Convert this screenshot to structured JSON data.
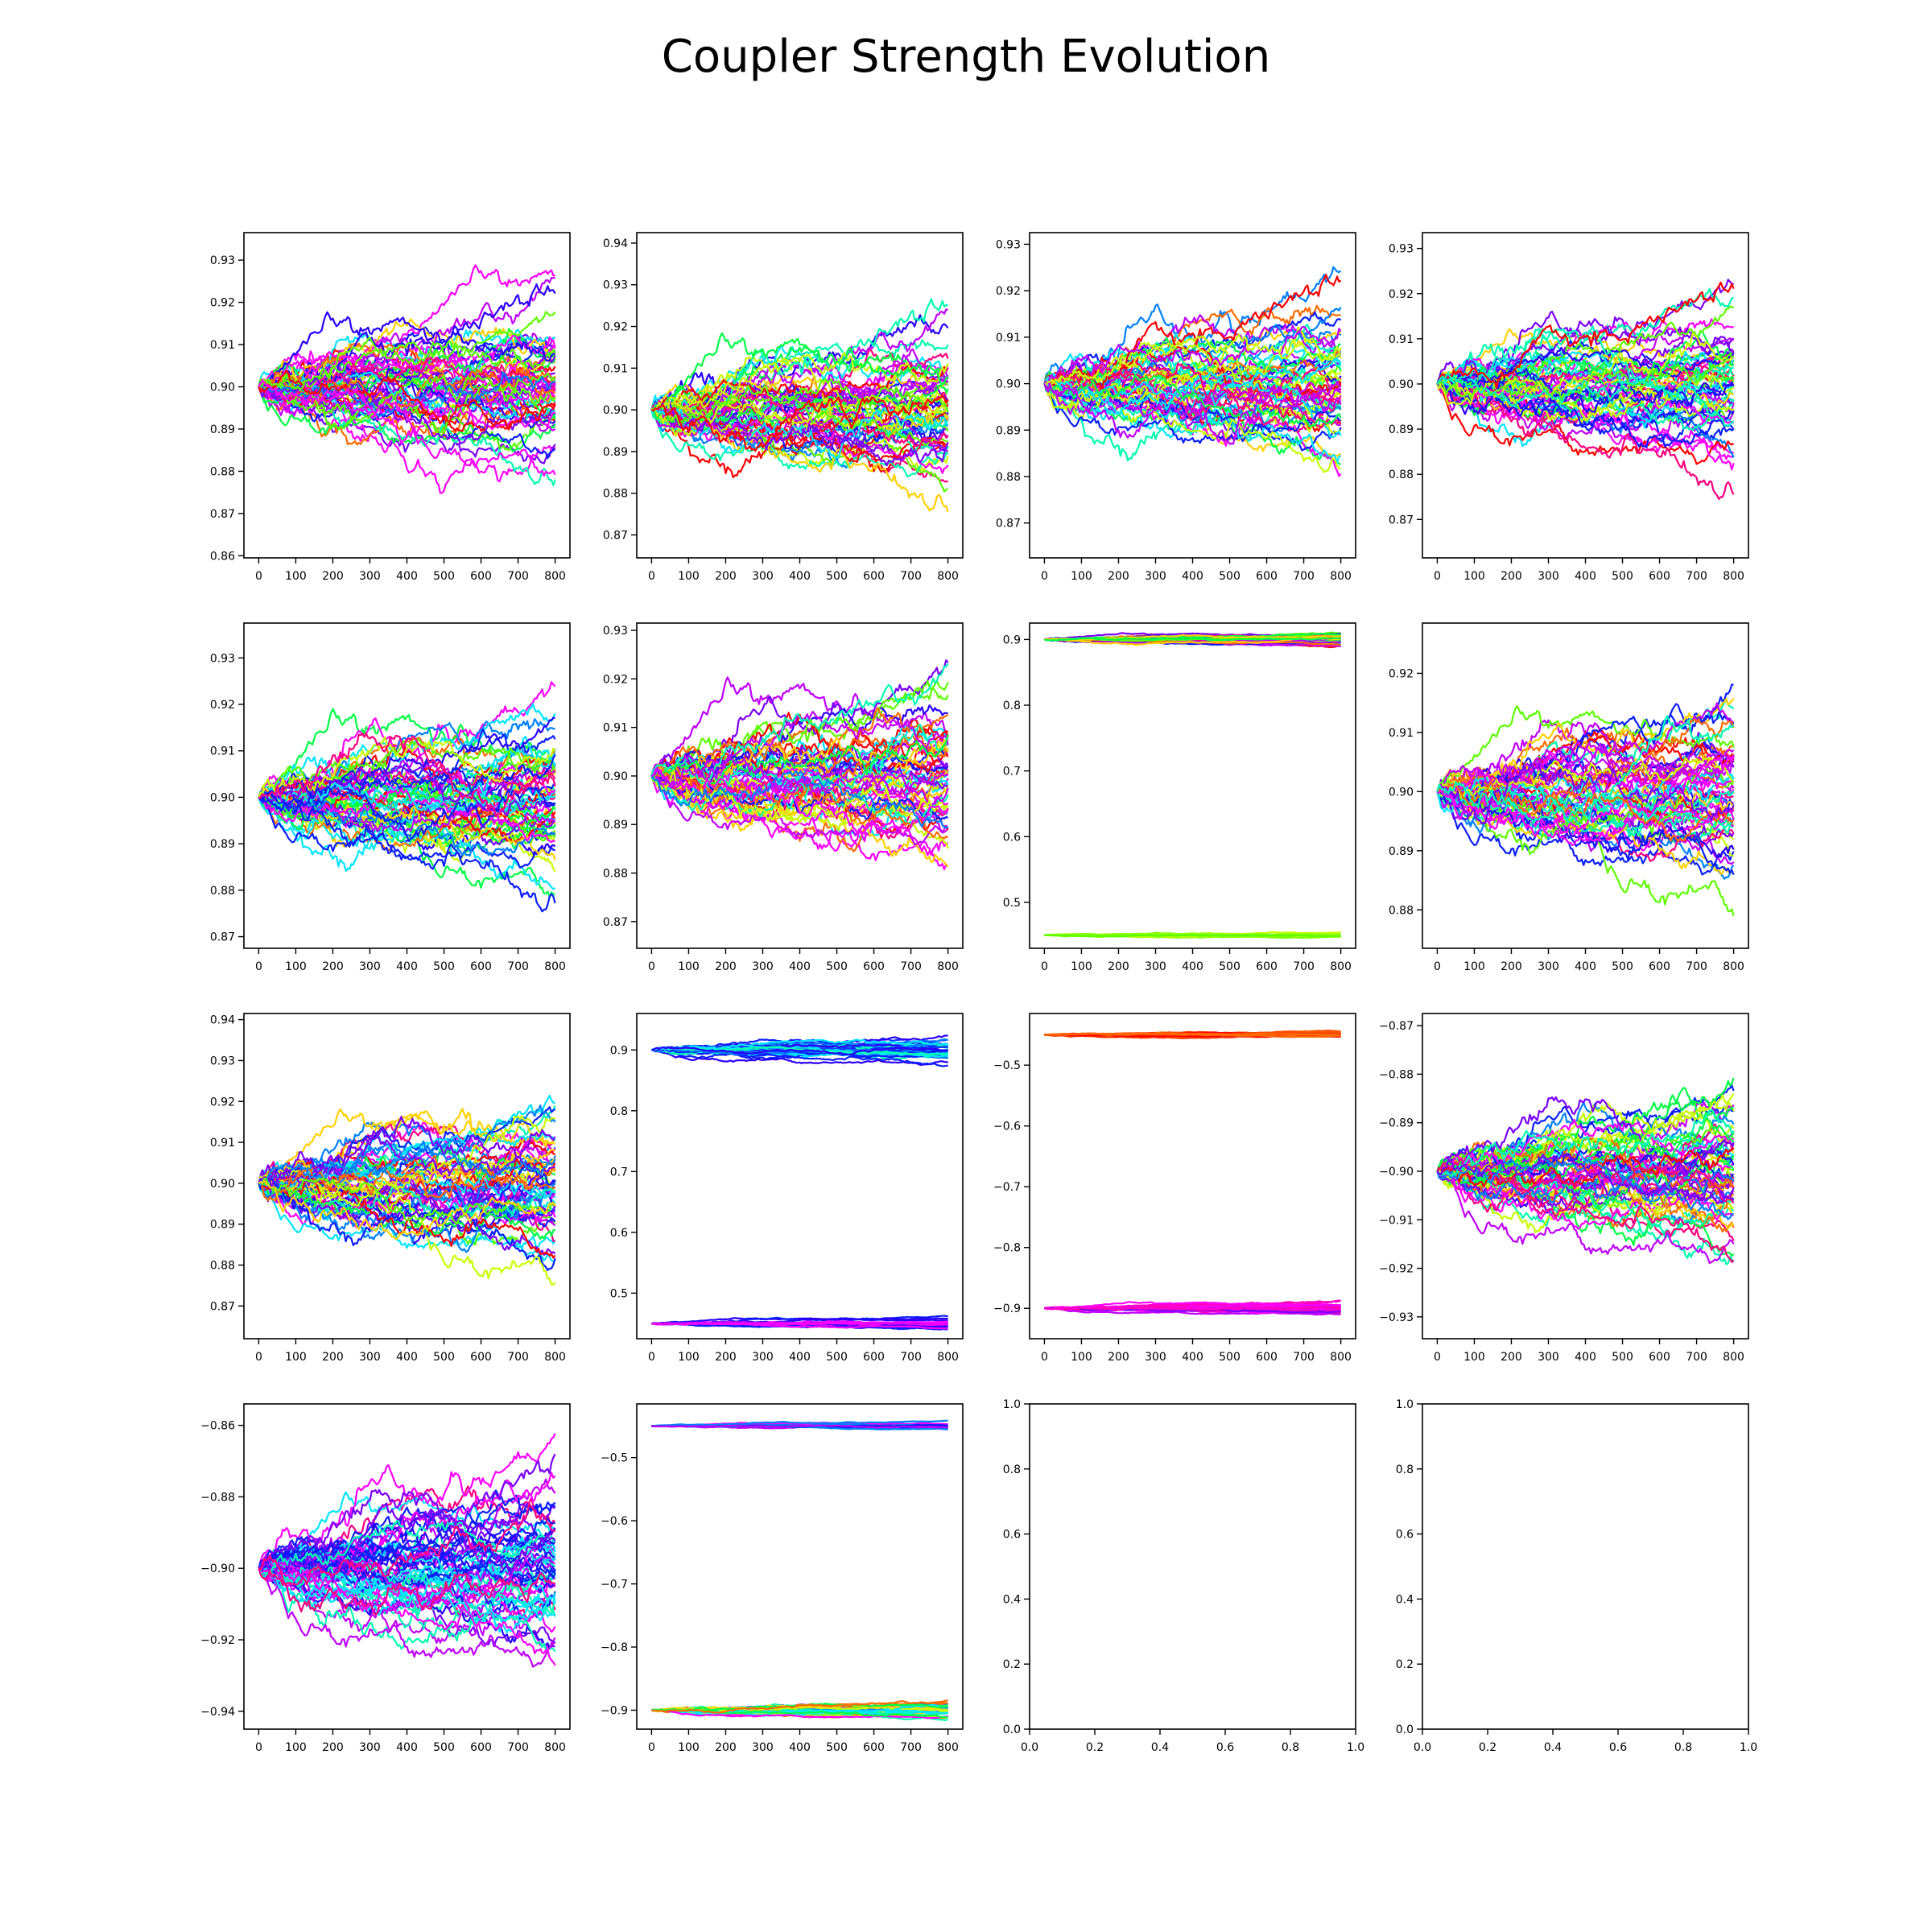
{
  "title": "Coupler Strength Evolution",
  "palette": [
    "#ff0000",
    "#ff6a00",
    "#ffd000",
    "#c8ff00",
    "#5cff00",
    "#00ff44",
    "#00ffb0",
    "#00e5ff",
    "#0080ff",
    "#0a1eff",
    "#2a00ff",
    "#7a00ff",
    "#c000ff",
    "#ff00ff",
    "#ff0080"
  ],
  "chart_data": [
    {
      "type": "line",
      "x_ticks": [
        0,
        100,
        200,
        300,
        400,
        500,
        600,
        700,
        800
      ],
      "xlim": [
        -40,
        840
      ],
      "y_ticks": [
        0.86,
        0.87,
        0.88,
        0.89,
        0.9,
        0.91,
        0.92,
        0.93
      ],
      "y_tick_labels": [
        "0.86",
        "0.87",
        "0.88",
        "0.89",
        "0.90",
        "0.91",
        "0.92",
        "0.93"
      ],
      "ylim": [
        0.8595,
        0.9365
      ],
      "series": [
        {
          "center": 0.9,
          "spread": 0.0085,
          "count": 60,
          "palette": "full"
        }
      ]
    },
    {
      "type": "line",
      "x_ticks": [
        0,
        100,
        200,
        300,
        400,
        500,
        600,
        700,
        800
      ],
      "xlim": [
        -40,
        840
      ],
      "y_ticks": [
        0.87,
        0.88,
        0.89,
        0.9,
        0.91,
        0.92,
        0.93,
        0.94
      ],
      "y_tick_labels": [
        "0.87",
        "0.88",
        "0.89",
        "0.90",
        "0.91",
        "0.92",
        "0.93",
        "0.94"
      ],
      "ylim": [
        0.8645,
        0.9425
      ],
      "series": [
        {
          "center": 0.9,
          "spread": 0.0085,
          "count": 60,
          "palette": "full"
        }
      ]
    },
    {
      "type": "line",
      "x_ticks": [
        0,
        100,
        200,
        300,
        400,
        500,
        600,
        700,
        800
      ],
      "xlim": [
        -40,
        840
      ],
      "y_ticks": [
        0.87,
        0.88,
        0.89,
        0.9,
        0.91,
        0.92,
        0.93
      ],
      "y_tick_labels": [
        "0.87",
        "0.88",
        "0.89",
        "0.90",
        "0.91",
        "0.92",
        "0.93"
      ],
      "ylim": [
        0.8625,
        0.9325
      ],
      "series": [
        {
          "center": 0.9,
          "spread": 0.0075,
          "count": 60,
          "palette": "full"
        }
      ]
    },
    {
      "type": "line",
      "x_ticks": [
        0,
        100,
        200,
        300,
        400,
        500,
        600,
        700,
        800
      ],
      "xlim": [
        -40,
        840
      ],
      "y_ticks": [
        0.87,
        0.88,
        0.89,
        0.9,
        0.91,
        0.92,
        0.93
      ],
      "y_tick_labels": [
        "0.87",
        "0.88",
        "0.89",
        "0.90",
        "0.91",
        "0.92",
        "0.93"
      ],
      "ylim": [
        0.8615,
        0.9335
      ],
      "series": [
        {
          "center": 0.9,
          "spread": 0.0075,
          "count": 60,
          "palette": "full"
        }
      ]
    },
    {
      "type": "line",
      "x_ticks": [
        0,
        100,
        200,
        300,
        400,
        500,
        600,
        700,
        800
      ],
      "xlim": [
        -40,
        840
      ],
      "y_ticks": [
        0.87,
        0.88,
        0.89,
        0.9,
        0.91,
        0.92,
        0.93
      ],
      "y_tick_labels": [
        "0.87",
        "0.88",
        "0.89",
        "0.90",
        "0.91",
        "0.92",
        "0.93"
      ],
      "ylim": [
        0.8675,
        0.9375
      ],
      "series": [
        {
          "center": 0.9,
          "spread": 0.0078,
          "count": 60,
          "palette": "full"
        }
      ]
    },
    {
      "type": "line",
      "x_ticks": [
        0,
        100,
        200,
        300,
        400,
        500,
        600,
        700,
        800
      ],
      "xlim": [
        -40,
        840
      ],
      "y_ticks": [
        0.87,
        0.88,
        0.89,
        0.9,
        0.91,
        0.92,
        0.93
      ],
      "y_tick_labels": [
        "0.87",
        "0.88",
        "0.89",
        "0.90",
        "0.91",
        "0.92",
        "0.93"
      ],
      "ylim": [
        0.8645,
        0.9315
      ],
      "series": [
        {
          "center": 0.9,
          "spread": 0.0078,
          "count": 60,
          "palette": "full"
        }
      ]
    },
    {
      "type": "line",
      "x_ticks": [
        0,
        100,
        200,
        300,
        400,
        500,
        600,
        700,
        800
      ],
      "xlim": [
        -40,
        840
      ],
      "y_ticks": [
        0.5,
        0.6,
        0.7,
        0.8,
        0.9
      ],
      "y_tick_labels": [
        "0.5",
        "0.6",
        "0.7",
        "0.8",
        "0.9"
      ],
      "ylim": [
        0.43,
        0.925
      ],
      "series": [
        {
          "center": 0.9,
          "spread": 0.004,
          "count": 40,
          "palette": "full"
        },
        {
          "center": 0.45,
          "spread": 0.0025,
          "count": 14,
          "palette": "green"
        }
      ]
    },
    {
      "type": "line",
      "x_ticks": [
        0,
        100,
        200,
        300,
        400,
        500,
        600,
        700,
        800
      ],
      "xlim": [
        -40,
        840
      ],
      "y_ticks": [
        0.88,
        0.89,
        0.9,
        0.91,
        0.92
      ],
      "y_tick_labels": [
        "0.88",
        "0.89",
        "0.90",
        "0.91",
        "0.92"
      ],
      "ylim": [
        0.8735,
        0.9285
      ],
      "series": [
        {
          "center": 0.9,
          "spread": 0.0065,
          "count": 60,
          "palette": "full"
        }
      ]
    },
    {
      "type": "line",
      "x_ticks": [
        0,
        100,
        200,
        300,
        400,
        500,
        600,
        700,
        800
      ],
      "xlim": [
        -40,
        840
      ],
      "y_ticks": [
        0.87,
        0.88,
        0.89,
        0.9,
        0.91,
        0.92,
        0.93,
        0.94
      ],
      "y_tick_labels": [
        "0.87",
        "0.88",
        "0.89",
        "0.90",
        "0.91",
        "0.92",
        "0.93",
        "0.94"
      ],
      "ylim": [
        0.862,
        0.9415
      ],
      "series": [
        {
          "center": 0.9,
          "spread": 0.0085,
          "count": 60,
          "palette": "full"
        }
      ]
    },
    {
      "type": "line",
      "x_ticks": [
        0,
        100,
        200,
        300,
        400,
        500,
        600,
        700,
        800
      ],
      "xlim": [
        -40,
        840
      ],
      "y_ticks": [
        0.5,
        0.6,
        0.7,
        0.8,
        0.9
      ],
      "y_tick_labels": [
        "0.5",
        "0.6",
        "0.7",
        "0.8",
        "0.9"
      ],
      "ylim": [
        0.425,
        0.96
      ],
      "series": [
        {
          "center": 0.9,
          "spread": 0.009,
          "count": 36,
          "palette": "blue"
        },
        {
          "center": 0.45,
          "spread": 0.004,
          "count": 20,
          "palette": "purple"
        }
      ]
    },
    {
      "type": "line",
      "x_ticks": [
        0,
        100,
        200,
        300,
        400,
        500,
        600,
        700,
        800
      ],
      "xlim": [
        -40,
        840
      ],
      "y_ticks": [
        -0.9,
        -0.8,
        -0.7,
        -0.6,
        -0.5
      ],
      "y_tick_labels": [
        "−0.9",
        "−0.8",
        "−0.7",
        "−0.6",
        "−0.5"
      ],
      "ylim": [
        -0.95,
        -0.415
      ],
      "series": [
        {
          "center": -0.45,
          "spread": 0.003,
          "count": 18,
          "palette": "red"
        },
        {
          "center": -0.9,
          "spread": 0.0045,
          "count": 30,
          "palette": "magenta"
        }
      ]
    },
    {
      "type": "line",
      "x_ticks": [
        0,
        100,
        200,
        300,
        400,
        500,
        600,
        700,
        800
      ],
      "xlim": [
        -40,
        840
      ],
      "y_ticks": [
        -0.93,
        -0.92,
        -0.91,
        -0.9,
        -0.89,
        -0.88,
        -0.87
      ],
      "y_tick_labels": [
        "−0.93",
        "−0.92",
        "−0.91",
        "−0.90",
        "−0.89",
        "−0.88",
        "−0.87"
      ],
      "ylim": [
        -0.9345,
        -0.8675
      ],
      "series": [
        {
          "center": -0.9,
          "spread": 0.0075,
          "count": 60,
          "palette": "full"
        }
      ]
    },
    {
      "type": "line",
      "x_ticks": [
        0,
        100,
        200,
        300,
        400,
        500,
        600,
        700,
        800
      ],
      "xlim": [
        -40,
        840
      ],
      "y_ticks": [
        -0.94,
        -0.92,
        -0.9,
        -0.88,
        -0.86
      ],
      "y_tick_labels": [
        "−0.94",
        "−0.92",
        "−0.90",
        "−0.88",
        "−0.86"
      ],
      "ylim": [
        -0.945,
        -0.854
      ],
      "series": [
        {
          "center": -0.9,
          "spread": 0.011,
          "count": 60,
          "palette": "purplemag"
        }
      ]
    },
    {
      "type": "line",
      "x_ticks": [
        0,
        100,
        200,
        300,
        400,
        500,
        600,
        700,
        800
      ],
      "xlim": [
        -40,
        840
      ],
      "y_ticks": [
        -0.9,
        -0.8,
        -0.7,
        -0.6,
        -0.5
      ],
      "y_tick_labels": [
        "−0.9",
        "−0.8",
        "−0.7",
        "−0.6",
        "−0.5"
      ],
      "ylim": [
        -0.93,
        -0.415
      ],
      "series": [
        {
          "center": -0.45,
          "spread": 0.003,
          "count": 18,
          "palette": "bluemag"
        },
        {
          "center": -0.9,
          "spread": 0.006,
          "count": 34,
          "palette": "cyanyellow"
        }
      ]
    },
    {
      "type": "empty",
      "x_ticks": [
        0.0,
        0.2,
        0.4,
        0.6,
        0.8,
        1.0
      ],
      "x_tick_labels": [
        "0.0",
        "0.2",
        "0.4",
        "0.6",
        "0.8",
        "1.0"
      ],
      "xlim": [
        0,
        1
      ],
      "y_ticks": [
        0.0,
        0.2,
        0.4,
        0.6,
        0.8,
        1.0
      ],
      "y_tick_labels": [
        "0.0",
        "0.2",
        "0.4",
        "0.6",
        "0.8",
        "1.0"
      ],
      "ylim": [
        0,
        1
      ],
      "series": []
    },
    {
      "type": "empty",
      "x_ticks": [
        0.0,
        0.2,
        0.4,
        0.6,
        0.8,
        1.0
      ],
      "x_tick_labels": [
        "0.0",
        "0.2",
        "0.4",
        "0.6",
        "0.8",
        "1.0"
      ],
      "xlim": [
        0,
        1
      ],
      "y_ticks": [
        0.0,
        0.2,
        0.4,
        0.6,
        0.8,
        1.0
      ],
      "y_tick_labels": [
        "0.0",
        "0.2",
        "0.4",
        "0.6",
        "0.8",
        "1.0"
      ],
      "ylim": [
        0,
        1
      ],
      "series": []
    }
  ]
}
